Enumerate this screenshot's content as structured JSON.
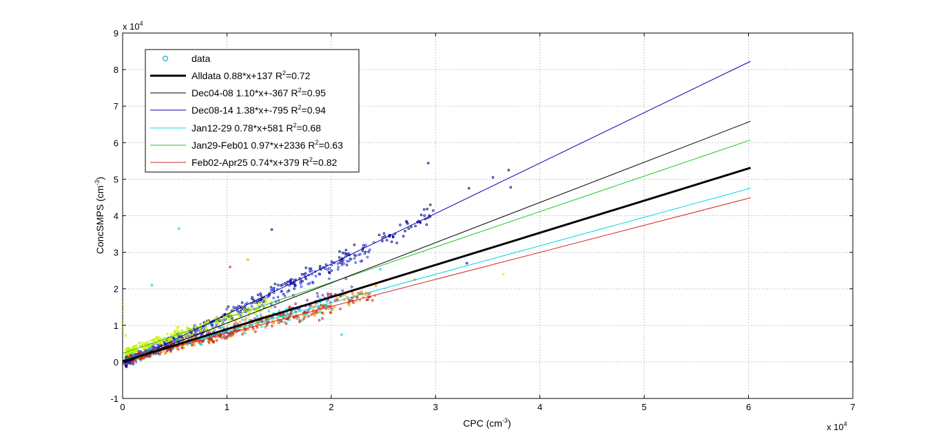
{
  "chart_data": {
    "type": "scatter",
    "xlabel": "CPC (cm",
    "xlabel_exp": "-3",
    "xlabel_end": ")",
    "ylabel": "ConcSMPS (cm",
    "ylabel_exp": "-3",
    "ylabel_end": ")",
    "x_multiplier": "x 10",
    "x_multiplier_exp": "4",
    "y_multiplier": "x 10",
    "y_multiplier_exp": "4",
    "xlim": [
      0,
      70000
    ],
    "ylim": [
      -10000,
      90000
    ],
    "xticks": [
      0,
      10000,
      20000,
      30000,
      40000,
      50000,
      60000,
      70000
    ],
    "xtick_labels": [
      "0",
      "1",
      "2",
      "3",
      "4",
      "5",
      "6",
      "7"
    ],
    "yticks": [
      -10000,
      0,
      10000,
      20000,
      30000,
      40000,
      50000,
      60000,
      70000,
      80000,
      90000
    ],
    "ytick_labels": [
      "-1",
      "0",
      "1",
      "2",
      "3",
      "4",
      "5",
      "6",
      "7",
      "8",
      "9"
    ],
    "grid": true,
    "legend_position": "top-left",
    "fit_x_range": [
      0,
      60200
    ],
    "series": [
      {
        "name": "data",
        "kind": "markers",
        "marker_color": "#1fa8d8"
      },
      {
        "name": "Alldata 0.88*x+137 R",
        "r2_exp": "2",
        "r2_value": "=0.72",
        "slope": 0.88,
        "intercept": 137,
        "color": "#000000",
        "width": 3
      },
      {
        "name": "Dec04-08 1.10*x+-367 R",
        "r2_exp": "2",
        "r2_value": "=0.95",
        "slope": 1.1,
        "intercept": -367,
        "color": "#000000",
        "width": 1
      },
      {
        "name": "Dec08-14 1.38*x+-795 R",
        "r2_exp": "2",
        "r2_value": "=0.94",
        "slope": 1.38,
        "intercept": -795,
        "color": "#0000b0",
        "width": 1
      },
      {
        "name": "Jan12-29 0.78*x+581 R",
        "r2_exp": "2",
        "r2_value": "=0.68",
        "slope": 0.78,
        "intercept": 581,
        "color": "#00d5e6",
        "width": 1
      },
      {
        "name": "Jan29-Feb01 0.97*x+2336 R",
        "r2_exp": "2",
        "r2_value": "=0.63",
        "slope": 0.97,
        "intercept": 2336,
        "color": "#1fc41f",
        "width": 1
      },
      {
        "name": "Feb02-Apr25 0.74*x+379 R",
        "r2_exp": "2",
        "r2_value": "=0.82",
        "slope": 0.74,
        "intercept": 379,
        "color": "#d42020",
        "width": 1
      }
    ],
    "point_groups": [
      {
        "color": "#00008b",
        "slope": 1.38,
        "intercept": -795,
        "count": 260,
        "xmax": 30000,
        "spread": 0.09
      },
      {
        "color": "#2a36d8",
        "slope": 1.3,
        "intercept": -500,
        "count": 220,
        "xmax": 24000,
        "spread": 0.1
      },
      {
        "color": "#00c8e8",
        "slope": 0.78,
        "intercept": 581,
        "count": 220,
        "xmax": 20000,
        "spread": 0.12
      },
      {
        "color": "#c8f000",
        "slope": 0.97,
        "intercept": 2336,
        "count": 260,
        "xmax": 14000,
        "spread": 0.16
      },
      {
        "color": "#f09000",
        "slope": 0.8,
        "intercept": 300,
        "count": 260,
        "xmax": 24000,
        "spread": 0.12
      },
      {
        "color": "#c82000",
        "slope": 0.74,
        "intercept": 379,
        "count": 200,
        "xmax": 24000,
        "spread": 0.1
      },
      {
        "color": "#6a2a90",
        "slope": 0.9,
        "intercept": 200,
        "count": 120,
        "xmax": 22000,
        "spread": 0.12
      }
    ],
    "outlier_points": [
      {
        "x": 29300,
        "y": 54400,
        "color": "#00008b"
      },
      {
        "x": 37000,
        "y": 52500,
        "color": "#00008b"
      },
      {
        "x": 35500,
        "y": 50500,
        "color": "#00008b"
      },
      {
        "x": 37200,
        "y": 47800,
        "color": "#00008b"
      },
      {
        "x": 33200,
        "y": 47500,
        "color": "#00008b"
      },
      {
        "x": 5400,
        "y": 36500,
        "color": "#00c8e8"
      },
      {
        "x": 14300,
        "y": 36200,
        "color": "#00008b"
      },
      {
        "x": 27200,
        "y": 38500,
        "color": "#00008b"
      },
      {
        "x": 29500,
        "y": 43000,
        "color": "#00008b"
      },
      {
        "x": 20800,
        "y": 30200,
        "color": "#00008b"
      },
      {
        "x": 12000,
        "y": 28000,
        "color": "#f09000"
      },
      {
        "x": 10300,
        "y": 26000,
        "color": "#c82000"
      },
      {
        "x": 2800,
        "y": 21000,
        "color": "#00c8e8"
      },
      {
        "x": 36500,
        "y": 24000,
        "color": "#c8f000"
      },
      {
        "x": 33000,
        "y": 27000,
        "color": "#00008b"
      },
      {
        "x": 24700,
        "y": 25300,
        "color": "#00c8e8"
      },
      {
        "x": 0,
        "y": 16000,
        "color": "#c8f000"
      },
      {
        "x": 0,
        "y": 13500,
        "color": "#c8f000"
      },
      {
        "x": 0,
        "y": 11000,
        "color": "#c8f000"
      },
      {
        "x": 0,
        "y": 9000,
        "color": "#c8f000"
      },
      {
        "x": 300,
        "y": 7200,
        "color": "#c8f000"
      },
      {
        "x": 21000,
        "y": 7500,
        "color": "#00c8e8"
      },
      {
        "x": 28000,
        "y": 22500,
        "color": "#f09000"
      }
    ]
  }
}
